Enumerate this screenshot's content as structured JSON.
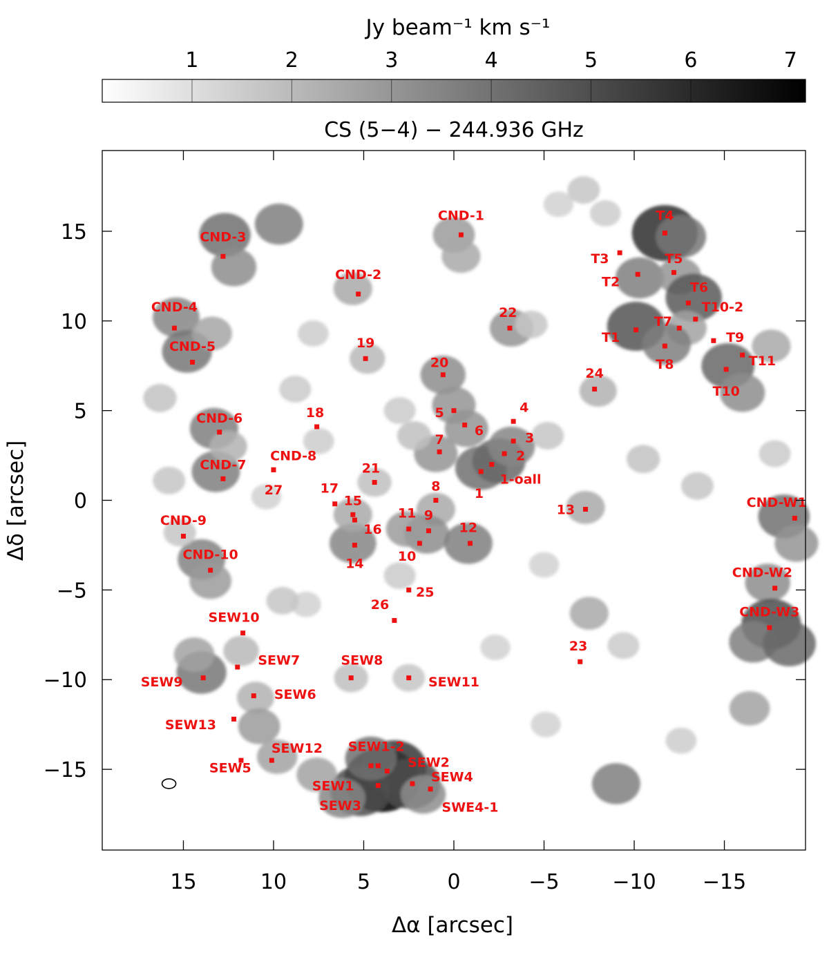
{
  "chart_data": {
    "type": "heatmap",
    "title": "CS (5−4) − 244.936 GHz",
    "xlabel": "Δα [arcsec]",
    "ylabel": "Δδ [arcsec]",
    "xlim": [
      19.5,
      -19.5
    ],
    "ylim": [
      -19.5,
      19.5
    ],
    "xticks": [
      15,
      10,
      5,
      0,
      -5,
      -10,
      -15
    ],
    "xtick_labels": [
      "15",
      "10",
      "5",
      "0",
      "−5",
      "−10",
      "−15"
    ],
    "yticks": [
      15,
      10,
      5,
      0,
      -5,
      -10,
      -15
    ],
    "ytick_labels": [
      "15",
      "10",
      "5",
      "0",
      "−5",
      "−10",
      "−15"
    ],
    "colorbar": {
      "label": "Jy beam⁻¹ km s⁻¹",
      "range": [
        0.1,
        7.15
      ],
      "ticks": [
        1,
        2,
        3,
        4,
        5,
        6,
        7
      ],
      "tick_labels": [
        "1",
        "2",
        "3",
        "4",
        "5",
        "6",
        "7"
      ],
      "colormap": "white-to-black"
    },
    "marker_color": "#ee1111",
    "beam": {
      "x": 15.8,
      "y": -15.8
    },
    "emission": [
      {
        "x": 12.7,
        "y": 14.8,
        "v": 4.0
      },
      {
        "x": 12.2,
        "y": 13.0,
        "v": 3.2
      },
      {
        "x": 9.7,
        "y": 15.4,
        "v": 3.6
      },
      {
        "x": 15.4,
        "y": 10.2,
        "v": 3.4
      },
      {
        "x": 14.8,
        "y": 8.3,
        "v": 3.8
      },
      {
        "x": 13.4,
        "y": 9.3,
        "v": 2.5
      },
      {
        "x": 13.3,
        "y": 4.0,
        "v": 3.6
      },
      {
        "x": 13.2,
        "y": 1.6,
        "v": 3.6
      },
      {
        "x": 12.5,
        "y": 3.0,
        "v": 2.2
      },
      {
        "x": 14.0,
        "y": -3.3,
        "v": 3.5
      },
      {
        "x": 13.5,
        "y": -4.5,
        "v": 2.8
      },
      {
        "x": 15.2,
        "y": -1.8,
        "v": 1.6
      },
      {
        "x": 0.6,
        "y": 7.0,
        "v": 3.2
      },
      {
        "x": 0.0,
        "y": 5.3,
        "v": 3.0
      },
      {
        "x": -0.7,
        "y": 4.0,
        "v": 3.0
      },
      {
        "x": 1.0,
        "y": 2.6,
        "v": 3.0
      },
      {
        "x": -1.5,
        "y": 1.8,
        "v": 4.0
      },
      {
        "x": -2.5,
        "y": 2.2,
        "v": 4.2
      },
      {
        "x": -3.2,
        "y": 3.0,
        "v": 3.4
      },
      {
        "x": 1.0,
        "y": -0.5,
        "v": 2.4
      },
      {
        "x": 1.5,
        "y": -1.9,
        "v": 3.2
      },
      {
        "x": 2.6,
        "y": -1.6,
        "v": 2.8
      },
      {
        "x": -0.8,
        "y": -2.4,
        "v": 3.6
      },
      {
        "x": 5.6,
        "y": -2.4,
        "v": 3.4
      },
      {
        "x": 5.6,
        "y": -0.8,
        "v": 2.4
      },
      {
        "x": -3.2,
        "y": 9.6,
        "v": 3.0
      },
      {
        "x": 0.0,
        "y": 14.8,
        "v": 2.8
      },
      {
        "x": -0.4,
        "y": 13.6,
        "v": 2.4
      },
      {
        "x": 5.6,
        "y": 11.8,
        "v": 2.4
      },
      {
        "x": 4.8,
        "y": 7.9,
        "v": 2.0
      },
      {
        "x": 4.4,
        "y": 1.0,
        "v": 1.8
      },
      {
        "x": -7.3,
        "y": -0.4,
        "v": 2.4
      },
      {
        "x": -11.7,
        "y": 14.9,
        "v": 5.8
      },
      {
        "x": -12.6,
        "y": 14.7,
        "v": 3.8
      },
      {
        "x": -10.3,
        "y": 12.4,
        "v": 3.6
      },
      {
        "x": -12.5,
        "y": 12.5,
        "v": 3.0
      },
      {
        "x": -13.3,
        "y": 11.3,
        "v": 4.6
      },
      {
        "x": -10.1,
        "y": 9.7,
        "v": 4.8
      },
      {
        "x": -12.9,
        "y": 9.6,
        "v": 2.6
      },
      {
        "x": -11.8,
        "y": 8.7,
        "v": 3.6
      },
      {
        "x": -15.2,
        "y": 7.5,
        "v": 4.2
      },
      {
        "x": -16.0,
        "y": 6.0,
        "v": 3.2
      },
      {
        "x": -8.0,
        "y": 6.1,
        "v": 2.2
      },
      {
        "x": -17.6,
        "y": 8.6,
        "v": 2.4
      },
      {
        "x": -18.3,
        "y": -0.9,
        "v": 4.0
      },
      {
        "x": -19.0,
        "y": -2.4,
        "v": 3.0
      },
      {
        "x": -17.4,
        "y": -4.6,
        "v": 3.2
      },
      {
        "x": -17.6,
        "y": -6.9,
        "v": 5.0
      },
      {
        "x": -16.6,
        "y": -7.9,
        "v": 3.6
      },
      {
        "x": -18.6,
        "y": -8.0,
        "v": 4.2
      },
      {
        "x": 14.0,
        "y": -9.6,
        "v": 3.8
      },
      {
        "x": 14.4,
        "y": -8.6,
        "v": 2.6
      },
      {
        "x": 11.0,
        "y": -11.0,
        "v": 2.2
      },
      {
        "x": 10.8,
        "y": -12.6,
        "v": 2.8
      },
      {
        "x": 9.8,
        "y": -14.3,
        "v": 2.6
      },
      {
        "x": 11.8,
        "y": -8.4,
        "v": 2.0
      },
      {
        "x": 5.7,
        "y": -9.9,
        "v": 1.8
      },
      {
        "x": 2.5,
        "y": -9.9,
        "v": 1.6
      },
      {
        "x": 4.0,
        "y": -15.6,
        "v": 7.0
      },
      {
        "x": 3.3,
        "y": -14.9,
        "v": 5.6
      },
      {
        "x": 5.2,
        "y": -16.2,
        "v": 5.0
      },
      {
        "x": 2.4,
        "y": -15.8,
        "v": 5.0
      },
      {
        "x": 4.6,
        "y": -14.4,
        "v": 4.0
      },
      {
        "x": 1.7,
        "y": -16.4,
        "v": 3.2
      },
      {
        "x": 6.2,
        "y": -16.6,
        "v": 3.4
      },
      {
        "x": 7.6,
        "y": -15.3,
        "v": 2.6
      },
      {
        "x": -9.0,
        "y": -15.8,
        "v": 3.6
      },
      {
        "x": -7.5,
        "y": -6.3,
        "v": 2.4
      },
      {
        "x": -16.4,
        "y": -11.6,
        "v": 2.6
      },
      {
        "x": 7.8,
        "y": 9.3,
        "v": 1.4
      },
      {
        "x": 8.8,
        "y": 6.2,
        "v": 1.5
      },
      {
        "x": 7.5,
        "y": 3.3,
        "v": 1.4
      },
      {
        "x": 10.4,
        "y": 0.2,
        "v": 1.3
      },
      {
        "x": -5.2,
        "y": 3.6,
        "v": 1.6
      },
      {
        "x": -10.5,
        "y": 2.3,
        "v": 1.7
      },
      {
        "x": -13.5,
        "y": 0.8,
        "v": 1.6
      },
      {
        "x": -17.8,
        "y": 2.6,
        "v": 1.5
      },
      {
        "x": -5.0,
        "y": -3.6,
        "v": 1.3
      },
      {
        "x": -9.4,
        "y": -8.1,
        "v": 1.5
      },
      {
        "x": -12.6,
        "y": -13.4,
        "v": 1.4
      },
      {
        "x": -2.3,
        "y": -8.2,
        "v": 1.3
      },
      {
        "x": 8.2,
        "y": -5.8,
        "v": 1.3
      },
      {
        "x": 15.8,
        "y": 1.1,
        "v": 1.6
      },
      {
        "x": 16.3,
        "y": 5.7,
        "v": 1.7
      },
      {
        "x": 3.0,
        "y": 5.0,
        "v": 1.5
      },
      {
        "x": 2.2,
        "y": 3.6,
        "v": 1.8
      },
      {
        "x": -5.8,
        "y": 16.5,
        "v": 1.3
      },
      {
        "x": -7.2,
        "y": 17.3,
        "v": 1.6
      },
      {
        "x": -8.4,
        "y": 16.0,
        "v": 1.4
      },
      {
        "x": 3.0,
        "y": -4.2,
        "v": 1.5
      },
      {
        "x": 9.5,
        "y": -5.6,
        "v": 1.6
      },
      {
        "x": -4.3,
        "y": 9.8,
        "v": 1.6
      },
      {
        "x": -5.1,
        "y": -12.5,
        "v": 1.3
      }
    ],
    "sources": [
      {
        "name": "CND-1",
        "x": -0.4,
        "y": 14.8,
        "lx": -0.4,
        "ly": 15.9
      },
      {
        "name": "CND-2",
        "x": 5.3,
        "y": 11.5,
        "lx": 5.3,
        "ly": 12.6
      },
      {
        "name": "CND-3",
        "x": 12.8,
        "y": 13.6,
        "lx": 12.8,
        "ly": 14.7
      },
      {
        "name": "CND-4",
        "x": 15.5,
        "y": 9.6,
        "lx": 15.5,
        "ly": 10.8
      },
      {
        "name": "CND-5",
        "x": 14.5,
        "y": 7.7,
        "lx": 14.5,
        "ly": 8.6
      },
      {
        "name": "CND-6",
        "x": 13.0,
        "y": 3.8,
        "lx": 13.0,
        "ly": 4.6
      },
      {
        "name": "CND-7",
        "x": 12.8,
        "y": 1.2,
        "lx": 12.8,
        "ly": 2.0
      },
      {
        "name": "CND-8",
        "x": 10.0,
        "y": 1.7,
        "lx": 8.9,
        "ly": 2.5
      },
      {
        "name": "CND-9",
        "x": 15.0,
        "y": -2.0,
        "lx": 15.0,
        "ly": -1.1
      },
      {
        "name": "CND-10",
        "x": 13.5,
        "y": -3.9,
        "lx": 13.5,
        "ly": -3.0
      },
      {
        "name": "CND-W1",
        "x": -18.9,
        "y": -1.0,
        "lx": -17.9,
        "ly": -0.1
      },
      {
        "name": "CND-W2",
        "x": -17.8,
        "y": -4.9,
        "lx": -17.1,
        "ly": -4.0
      },
      {
        "name": "CND-W3",
        "x": -17.5,
        "y": -7.1,
        "lx": -17.5,
        "ly": -6.2
      },
      {
        "name": "T1",
        "x": -10.1,
        "y": 9.5,
        "lx": -8.7,
        "ly": 9.1
      },
      {
        "name": "T2",
        "x": -10.2,
        "y": 12.6,
        "lx": -8.7,
        "ly": 12.2
      },
      {
        "name": "T3",
        "x": -9.2,
        "y": 13.8,
        "lx": -8.1,
        "ly": 13.5
      },
      {
        "name": "T4",
        "x": -11.7,
        "y": 14.9,
        "lx": -11.7,
        "ly": 15.9
      },
      {
        "name": "T5",
        "x": -12.2,
        "y": 12.7,
        "lx": -12.2,
        "ly": 13.5
      },
      {
        "name": "T6",
        "x": -13.0,
        "y": 11.0,
        "lx": -13.6,
        "ly": 11.9
      },
      {
        "name": "T7",
        "x": -12.5,
        "y": 9.6,
        "lx": -11.6,
        "ly": 10.0
      },
      {
        "name": "T8",
        "x": -11.7,
        "y": 8.6,
        "lx": -11.7,
        "ly": 7.6
      },
      {
        "name": "T9",
        "x": -14.4,
        "y": 8.9,
        "lx": -15.6,
        "ly": 9.1
      },
      {
        "name": "T10",
        "x": -15.1,
        "y": 7.3,
        "lx": -15.1,
        "ly": 6.1
      },
      {
        "name": "T10-2",
        "x": -13.4,
        "y": 10.1,
        "lx": -14.9,
        "ly": 10.8
      },
      {
        "name": "T11",
        "x": -16.0,
        "y": 8.1,
        "lx": -17.1,
        "ly": 7.8
      },
      {
        "name": "1",
        "x": -1.5,
        "y": 1.6,
        "lx": -1.4,
        "ly": 0.4
      },
      {
        "name": "1-oall",
        "x": -2.1,
        "y": 2.0,
        "lx": -3.7,
        "ly": 1.2
      },
      {
        "name": "2",
        "x": -2.8,
        "y": 2.6,
        "lx": -3.7,
        "ly": 2.5
      },
      {
        "name": "3",
        "x": -3.3,
        "y": 3.3,
        "lx": -4.2,
        "ly": 3.5
      },
      {
        "name": "4",
        "x": -3.3,
        "y": 4.4,
        "lx": -3.9,
        "ly": 5.2
      },
      {
        "name": "5",
        "x": 0.0,
        "y": 5.0,
        "lx": 0.8,
        "ly": 4.9
      },
      {
        "name": "6",
        "x": -0.6,
        "y": 4.2,
        "lx": -1.4,
        "ly": 3.9
      },
      {
        "name": "7",
        "x": 0.8,
        "y": 2.7,
        "lx": 0.8,
        "ly": 3.4
      },
      {
        "name": "8",
        "x": 1.0,
        "y": 0.0,
        "lx": 1.0,
        "ly": 0.8
      },
      {
        "name": "9",
        "x": 1.4,
        "y": -1.7,
        "lx": 1.4,
        "ly": -0.8
      },
      {
        "name": "10",
        "x": 1.9,
        "y": -2.4,
        "lx": 2.6,
        "ly": -3.1
      },
      {
        "name": "11",
        "x": 2.5,
        "y": -1.6,
        "lx": 2.6,
        "ly": -0.7
      },
      {
        "name": "12",
        "x": -0.9,
        "y": -2.4,
        "lx": -0.8,
        "ly": -1.5
      },
      {
        "name": "13",
        "x": -7.3,
        "y": -0.5,
        "lx": -6.2,
        "ly": -0.5
      },
      {
        "name": "14",
        "x": 5.5,
        "y": -2.5,
        "lx": 5.5,
        "ly": -3.5
      },
      {
        "name": "15",
        "x": 5.6,
        "y": -0.8,
        "lx": 5.6,
        "ly": 0.0
      },
      {
        "name": "16",
        "x": 5.5,
        "y": -1.1,
        "lx": 4.5,
        "ly": -1.6
      },
      {
        "name": "17",
        "x": 6.6,
        "y": -0.2,
        "lx": 6.9,
        "ly": 0.7
      },
      {
        "name": "18",
        "x": 7.6,
        "y": 4.1,
        "lx": 7.7,
        "ly": 4.9
      },
      {
        "name": "19",
        "x": 4.9,
        "y": 7.9,
        "lx": 4.9,
        "ly": 8.8
      },
      {
        "name": "20",
        "x": 0.6,
        "y": 7.0,
        "lx": 0.8,
        "ly": 7.7
      },
      {
        "name": "21",
        "x": 4.4,
        "y": 1.0,
        "lx": 4.6,
        "ly": 1.8
      },
      {
        "name": "22",
        "x": -3.1,
        "y": 9.6,
        "lx": -3.0,
        "ly": 10.5
      },
      {
        "name": "23",
        "x": -7.0,
        "y": -9.0,
        "lx": -6.9,
        "ly": -8.1
      },
      {
        "name": "24",
        "x": -7.8,
        "y": 6.2,
        "lx": -7.8,
        "ly": 7.1
      },
      {
        "name": "25",
        "x": 2.5,
        "y": -5.0,
        "lx": 1.6,
        "ly": -5.1
      },
      {
        "name": "26",
        "x": 3.3,
        "y": -6.7,
        "lx": 4.1,
        "ly": -5.8
      },
      {
        "name": "27",
        "x": 10.0,
        "y": 1.7,
        "lx": 10.0,
        "ly": 0.6
      },
      {
        "name": "SEW1",
        "x": 4.2,
        "y": -15.9,
        "lx": 6.7,
        "ly": -15.9
      },
      {
        "name": "SEW1-2",
        "x": 4.2,
        "y": -14.8,
        "lx": 4.3,
        "ly": -13.7
      },
      {
        "name": "SEW2",
        "x": 3.7,
        "y": -15.1,
        "lx": 1.4,
        "ly": -14.6
      },
      {
        "name": "SEW3",
        "x": 4.6,
        "y": -14.8,
        "lx": 6.3,
        "ly": -17.0
      },
      {
        "name": "SEW4",
        "x": 2.3,
        "y": -15.8,
        "lx": 0.1,
        "ly": -15.4
      },
      {
        "name": "SWE4-1",
        "x": 1.3,
        "y": -16.1,
        "lx": -0.9,
        "ly": -17.1
      },
      {
        "name": "SEW5",
        "x": 11.8,
        "y": -14.5,
        "lx": 12.4,
        "ly": -14.9
      },
      {
        "name": "SEW6",
        "x": 11.1,
        "y": -10.9,
        "lx": 8.8,
        "ly": -10.8
      },
      {
        "name": "SEW7",
        "x": 12.0,
        "y": -9.3,
        "lx": 9.7,
        "ly": -8.9
      },
      {
        "name": "SEW8",
        "x": 5.7,
        "y": -9.9,
        "lx": 5.1,
        "ly": -8.9
      },
      {
        "name": "SEW9",
        "x": 13.9,
        "y": -9.9,
        "lx": 16.2,
        "ly": -10.1
      },
      {
        "name": "SEW10",
        "x": 11.7,
        "y": -7.4,
        "lx": 12.2,
        "ly": -6.5
      },
      {
        "name": "SEW11",
        "x": 2.5,
        "y": -9.9,
        "lx": 0.0,
        "ly": -10.1
      },
      {
        "name": "SEW12",
        "x": 10.1,
        "y": -14.5,
        "lx": 8.7,
        "ly": -13.8
      },
      {
        "name": "SEW13",
        "x": 12.2,
        "y": -12.2,
        "lx": 14.6,
        "ly": -12.5
      }
    ]
  }
}
